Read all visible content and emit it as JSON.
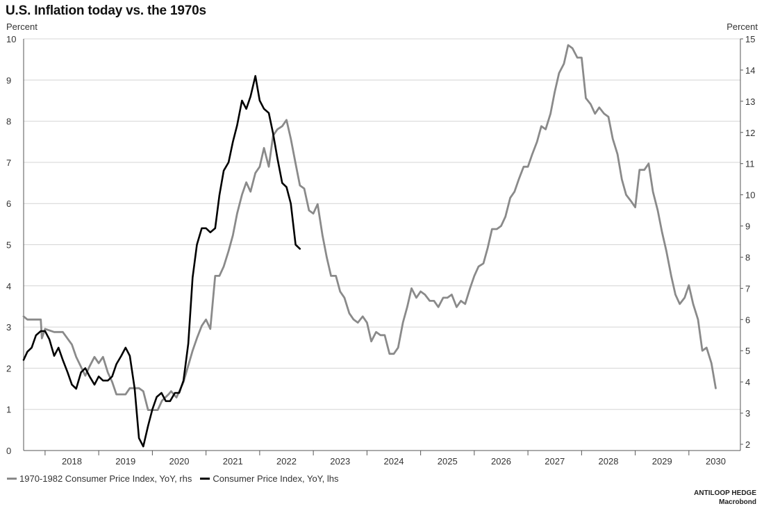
{
  "title": "U.S. Inflation today vs. the 1970s",
  "left_axis_unit": "Percent",
  "right_axis_unit": "Percent",
  "footer": {
    "line1": "ANTILOOP HEDGE",
    "line2": "Macrobond"
  },
  "colors": {
    "gray_series": "#8a8a8a",
    "black_series": "#000000",
    "grid": "#d4d4d4",
    "axis": "#555555"
  },
  "chart_data": {
    "type": "line",
    "title": "U.S. Inflation today vs. the 1970s",
    "grid": true,
    "legend_placement": "bottom-left",
    "x_axis": {
      "range": [
        2017.6,
        2030.96
      ],
      "tick_labels": [
        "2018",
        "2019",
        "2020",
        "2021",
        "2022",
        "2023",
        "2024",
        "2025",
        "2026",
        "2027",
        "2028",
        "2029",
        "2030"
      ]
    },
    "y_left": {
      "ylabel": "Percent",
      "ylim": [
        0,
        10
      ],
      "ticks": [
        0,
        1,
        2,
        3,
        4,
        5,
        6,
        7,
        8,
        9,
        10
      ]
    },
    "y_right": {
      "ylabel": "Percent",
      "ylim": [
        1.8,
        15
      ],
      "ticks": [
        2,
        3,
        4,
        5,
        6,
        7,
        8,
        9,
        10,
        11,
        12,
        13,
        14,
        15
      ]
    },
    "series": [
      {
        "name": "1970-1982 Consumer Price Index, YoY, rhs",
        "axis": "right",
        "color": "#8a8a8a",
        "points": [
          [
            2017.6,
            6.1
          ],
          [
            2017.67,
            6.0
          ],
          [
            2017.83,
            6.0
          ],
          [
            2017.92,
            6.0
          ],
          [
            2017.94,
            5.4
          ],
          [
            2018.0,
            5.7
          ],
          [
            2018.17,
            5.6
          ],
          [
            2018.33,
            5.6
          ],
          [
            2018.5,
            5.2
          ],
          [
            2018.58,
            4.8
          ],
          [
            2018.75,
            4.2
          ],
          [
            2018.83,
            4.5
          ],
          [
            2018.92,
            4.8
          ],
          [
            2019.0,
            4.6
          ],
          [
            2019.08,
            4.8
          ],
          [
            2019.17,
            4.3
          ],
          [
            2019.25,
            4.0
          ],
          [
            2019.33,
            3.6
          ],
          [
            2019.5,
            3.6
          ],
          [
            2019.58,
            3.8
          ],
          [
            2019.75,
            3.8
          ],
          [
            2019.83,
            3.7
          ],
          [
            2019.92,
            3.1
          ],
          [
            2020.0,
            3.1
          ],
          [
            2020.1,
            3.1
          ],
          [
            2020.18,
            3.4
          ],
          [
            2020.3,
            3.6
          ],
          [
            2020.35,
            3.7
          ],
          [
            2020.45,
            3.5
          ],
          [
            2020.58,
            4.0
          ],
          [
            2020.75,
            5.0
          ],
          [
            2020.83,
            5.4
          ],
          [
            2020.92,
            5.8
          ],
          [
            2021.0,
            6.0
          ],
          [
            2021.08,
            5.7
          ],
          [
            2021.17,
            7.4
          ],
          [
            2021.25,
            7.4
          ],
          [
            2021.33,
            7.7
          ],
          [
            2021.42,
            8.2
          ],
          [
            2021.5,
            8.7
          ],
          [
            2021.58,
            9.4
          ],
          [
            2021.67,
            10.0
          ],
          [
            2021.75,
            10.4
          ],
          [
            2021.83,
            10.1
          ],
          [
            2021.92,
            10.7
          ],
          [
            2022.0,
            10.9
          ],
          [
            2022.08,
            11.5
          ],
          [
            2022.17,
            10.9
          ],
          [
            2022.25,
            11.9
          ],
          [
            2022.33,
            12.1
          ],
          [
            2022.42,
            12.2
          ],
          [
            2022.5,
            12.4
          ],
          [
            2022.58,
            11.8
          ],
          [
            2022.67,
            11.0
          ],
          [
            2022.75,
            10.3
          ],
          [
            2022.83,
            10.2
          ],
          [
            2022.92,
            9.5
          ],
          [
            2023.0,
            9.4
          ],
          [
            2023.08,
            9.7
          ],
          [
            2023.17,
            8.7
          ],
          [
            2023.25,
            8.0
          ],
          [
            2023.33,
            7.4
          ],
          [
            2023.42,
            7.4
          ],
          [
            2023.5,
            6.9
          ],
          [
            2023.58,
            6.7
          ],
          [
            2023.67,
            6.2
          ],
          [
            2023.75,
            6.0
          ],
          [
            2023.83,
            5.9
          ],
          [
            2023.92,
            6.1
          ],
          [
            2024.0,
            5.9
          ],
          [
            2024.08,
            5.3
          ],
          [
            2024.17,
            5.6
          ],
          [
            2024.25,
            5.5
          ],
          [
            2024.33,
            5.5
          ],
          [
            2024.42,
            4.9
          ],
          [
            2024.5,
            4.9
          ],
          [
            2024.58,
            5.1
          ],
          [
            2024.67,
            5.9
          ],
          [
            2024.75,
            6.4
          ],
          [
            2024.83,
            7.0
          ],
          [
            2024.92,
            6.7
          ],
          [
            2025.0,
            6.9
          ],
          [
            2025.08,
            6.8
          ],
          [
            2025.17,
            6.6
          ],
          [
            2025.25,
            6.6
          ],
          [
            2025.33,
            6.4
          ],
          [
            2025.42,
            6.7
          ],
          [
            2025.5,
            6.7
          ],
          [
            2025.58,
            6.8
          ],
          [
            2025.67,
            6.4
          ],
          [
            2025.75,
            6.6
          ],
          [
            2025.83,
            6.5
          ],
          [
            2025.92,
            7.0
          ],
          [
            2026.0,
            7.4
          ],
          [
            2026.08,
            7.7
          ],
          [
            2026.17,
            7.8
          ],
          [
            2026.25,
            8.3
          ],
          [
            2026.33,
            8.9
          ],
          [
            2026.42,
            8.9
          ],
          [
            2026.5,
            9.0
          ],
          [
            2026.58,
            9.3
          ],
          [
            2026.67,
            9.9
          ],
          [
            2026.75,
            10.1
          ],
          [
            2026.83,
            10.5
          ],
          [
            2026.92,
            10.9
          ],
          [
            2027.0,
            10.9
          ],
          [
            2027.08,
            11.3
          ],
          [
            2027.17,
            11.7
          ],
          [
            2027.25,
            12.2
          ],
          [
            2027.33,
            12.1
          ],
          [
            2027.42,
            12.6
          ],
          [
            2027.5,
            13.3
          ],
          [
            2027.58,
            13.9
          ],
          [
            2027.67,
            14.2
          ],
          [
            2027.75,
            14.8
          ],
          [
            2027.83,
            14.7
          ],
          [
            2027.92,
            14.4
          ],
          [
            2028.0,
            14.4
          ],
          [
            2028.08,
            13.1
          ],
          [
            2028.17,
            12.9
          ],
          [
            2028.25,
            12.6
          ],
          [
            2028.33,
            12.8
          ],
          [
            2028.42,
            12.6
          ],
          [
            2028.5,
            12.5
          ],
          [
            2028.58,
            11.8
          ],
          [
            2028.67,
            11.3
          ],
          [
            2028.75,
            10.5
          ],
          [
            2028.83,
            10.0
          ],
          [
            2028.92,
            9.8
          ],
          [
            2029.0,
            9.6
          ],
          [
            2029.08,
            10.8
          ],
          [
            2029.17,
            10.8
          ],
          [
            2029.25,
            11.0
          ],
          [
            2029.33,
            10.1
          ],
          [
            2029.42,
            9.5
          ],
          [
            2029.5,
            8.8
          ],
          [
            2029.58,
            8.2
          ],
          [
            2029.67,
            7.4
          ],
          [
            2029.75,
            6.8
          ],
          [
            2029.83,
            6.5
          ],
          [
            2029.92,
            6.7
          ],
          [
            2030.0,
            7.1
          ],
          [
            2030.08,
            6.5
          ],
          [
            2030.17,
            6.0
          ],
          [
            2030.25,
            5.0
          ],
          [
            2030.33,
            5.1
          ],
          [
            2030.42,
            4.6
          ],
          [
            2030.5,
            3.8
          ]
        ]
      },
      {
        "name": "Consumer Price Index, YoY, lhs",
        "axis": "left",
        "color": "#000000",
        "points": [
          [
            2017.6,
            2.2
          ],
          [
            2017.67,
            2.4
          ],
          [
            2017.75,
            2.5
          ],
          [
            2017.83,
            2.8
          ],
          [
            2017.92,
            2.9
          ],
          [
            2018.0,
            2.9
          ],
          [
            2018.08,
            2.7
          ],
          [
            2018.17,
            2.3
          ],
          [
            2018.25,
            2.5
          ],
          [
            2018.33,
            2.2
          ],
          [
            2018.42,
            1.9
          ],
          [
            2018.5,
            1.6
          ],
          [
            2018.58,
            1.5
          ],
          [
            2018.67,
            1.9
          ],
          [
            2018.75,
            2.0
          ],
          [
            2018.83,
            1.8
          ],
          [
            2018.92,
            1.6
          ],
          [
            2019.0,
            1.8
          ],
          [
            2019.08,
            1.7
          ],
          [
            2019.17,
            1.7
          ],
          [
            2019.25,
            1.8
          ],
          [
            2019.33,
            2.1
          ],
          [
            2019.42,
            2.3
          ],
          [
            2019.5,
            2.5
          ],
          [
            2019.58,
            2.3
          ],
          [
            2019.67,
            1.5
          ],
          [
            2019.75,
            0.3
          ],
          [
            2019.83,
            0.1
          ],
          [
            2019.92,
            0.6
          ],
          [
            2020.0,
            1.0
          ],
          [
            2020.08,
            1.3
          ],
          [
            2020.17,
            1.4
          ],
          [
            2020.25,
            1.2
          ],
          [
            2020.33,
            1.2
          ],
          [
            2020.42,
            1.4
          ],
          [
            2020.5,
            1.4
          ],
          [
            2020.58,
            1.7
          ],
          [
            2020.67,
            2.6
          ],
          [
            2020.75,
            4.2
          ],
          [
            2020.83,
            5.0
          ],
          [
            2020.92,
            5.4
          ],
          [
            2021.0,
            5.4
          ],
          [
            2021.08,
            5.3
          ],
          [
            2021.17,
            5.4
          ],
          [
            2021.25,
            6.2
          ],
          [
            2021.33,
            6.8
          ],
          [
            2021.42,
            7.0
          ],
          [
            2021.5,
            7.5
          ],
          [
            2021.58,
            7.9
          ],
          [
            2021.67,
            8.5
          ],
          [
            2021.75,
            8.3
          ],
          [
            2021.83,
            8.6
          ],
          [
            2021.92,
            9.1
          ],
          [
            2022.0,
            8.5
          ],
          [
            2022.08,
            8.3
          ],
          [
            2022.17,
            8.2
          ],
          [
            2022.25,
            7.7
          ],
          [
            2022.33,
            7.1
          ],
          [
            2022.42,
            6.5
          ],
          [
            2022.5,
            6.4
          ],
          [
            2022.58,
            6.0
          ],
          [
            2022.67,
            5.0
          ],
          [
            2022.75,
            4.9
          ]
        ]
      }
    ]
  }
}
